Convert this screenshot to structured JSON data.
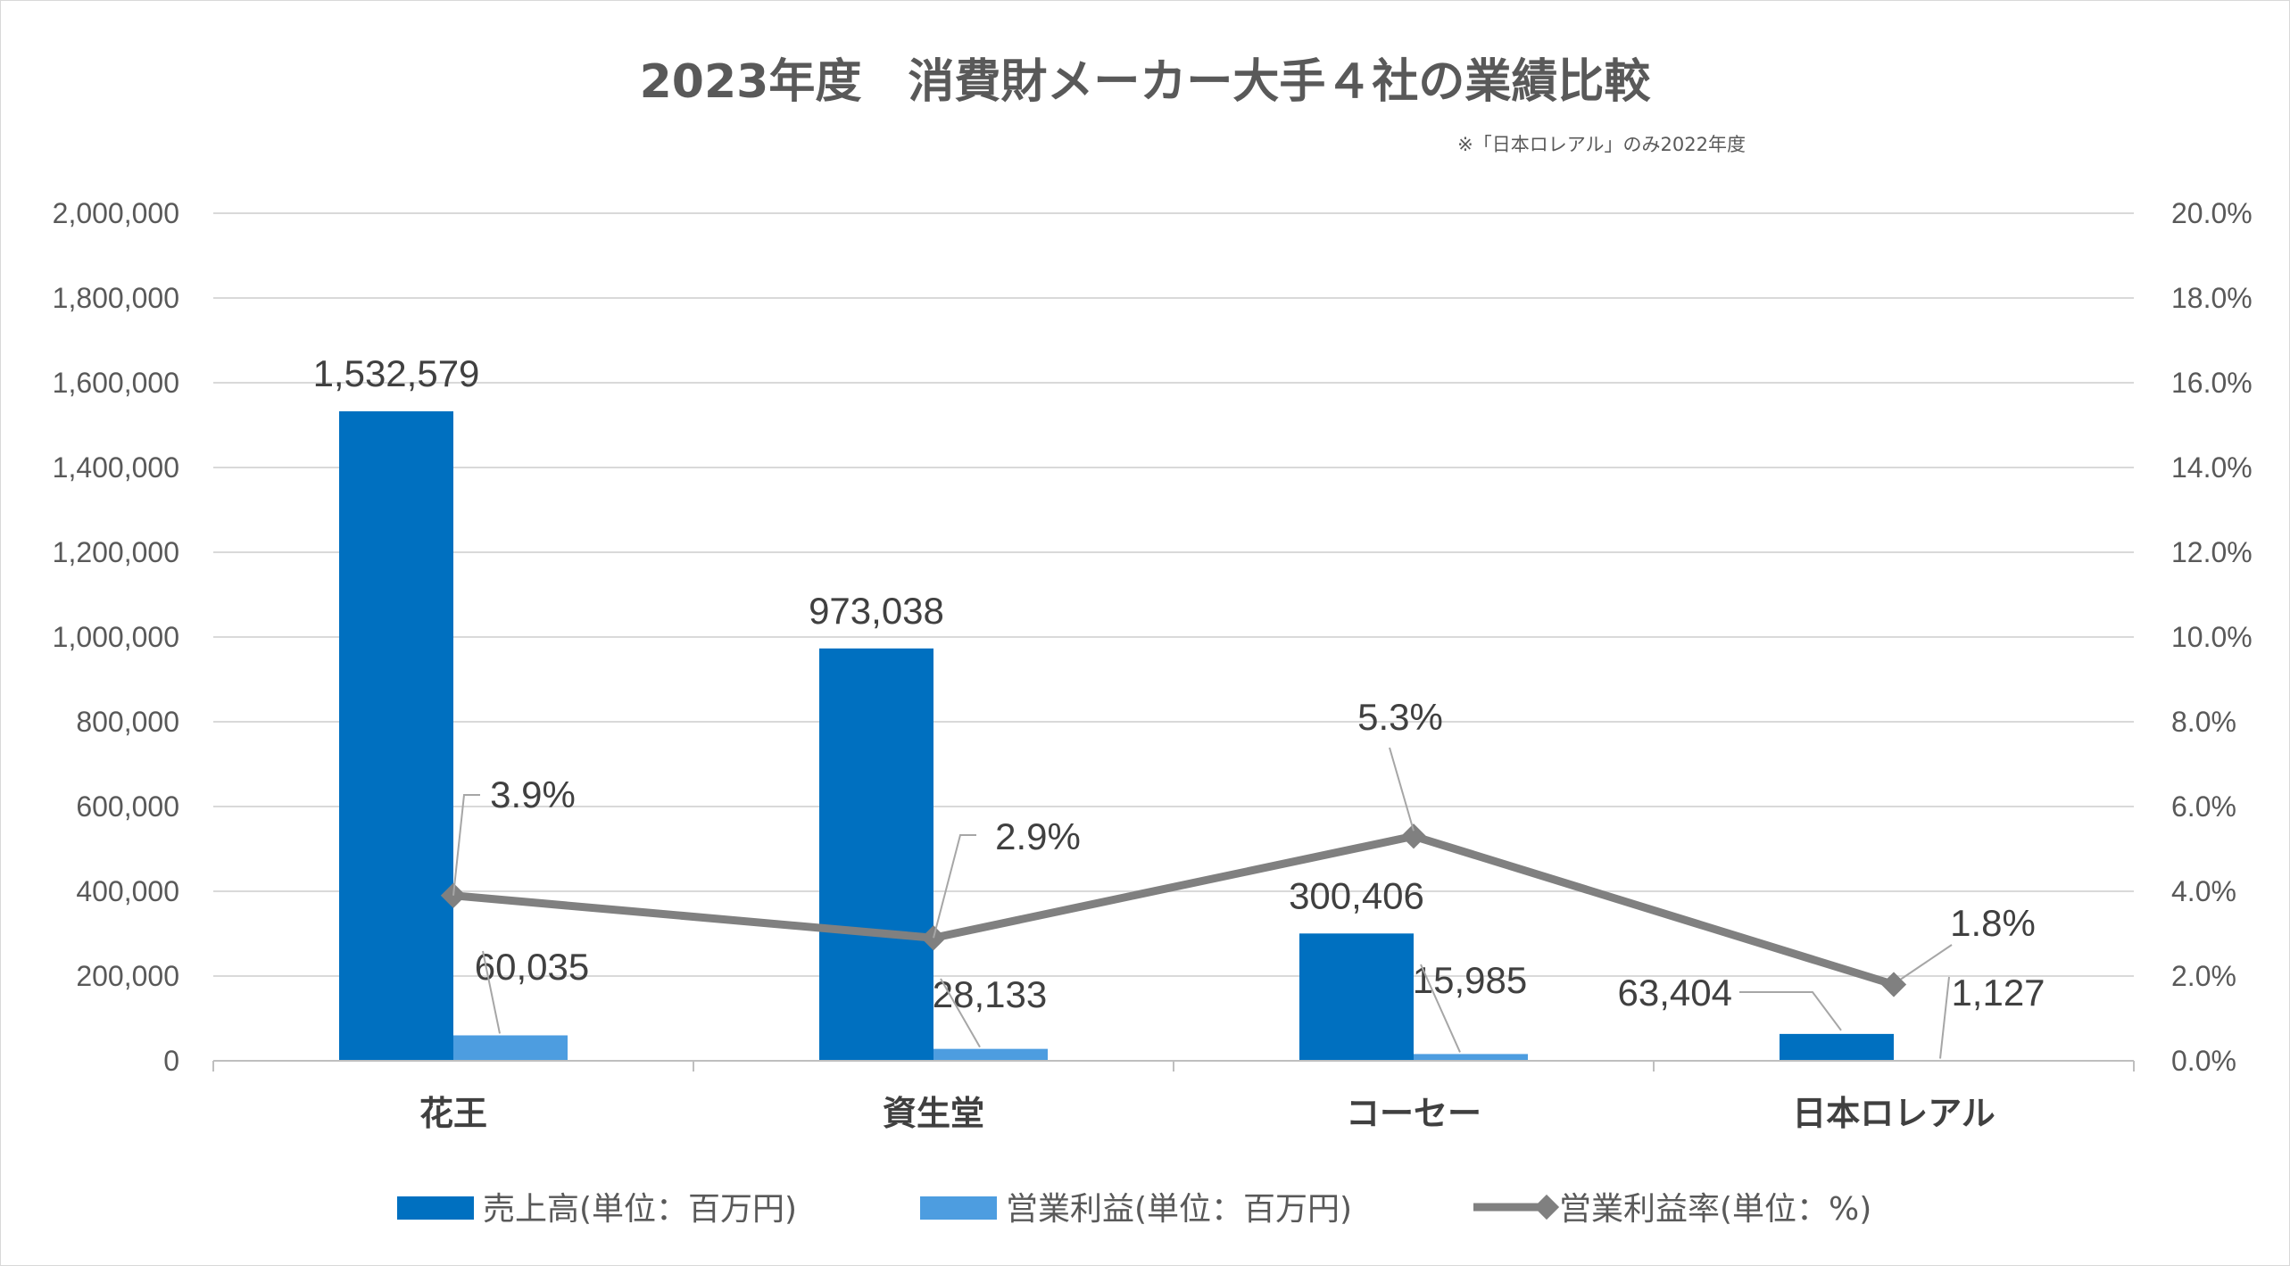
{
  "chart_data": {
    "type": "bar",
    "title": "2023年度　消費財メーカー大手４社の業績比較",
    "subtitle": "※「日本ロレアル」のみ2022年度",
    "categories": [
      "花王",
      "資生堂",
      "コーセー",
      "日本ロレアル"
    ],
    "series": [
      {
        "name": "売上高(単位：百万円)",
        "type": "bar",
        "axis": "left",
        "color": "#0070c0",
        "values": [
          1532579,
          973038,
          300406,
          63404
        ],
        "labels": [
          "1,532,579",
          "973,038",
          "300,406",
          "63,404"
        ]
      },
      {
        "name": "営業利益(単位：百万円)",
        "type": "bar",
        "axis": "left",
        "color": "#4d9de0",
        "values": [
          60035,
          28133,
          15985,
          1127
        ],
        "labels": [
          "60,035",
          "28,133",
          "15,985",
          "1,127"
        ]
      },
      {
        "name": "営業利益率(単位：%)",
        "type": "line",
        "axis": "right",
        "color": "#808080",
        "values": [
          3.9,
          2.9,
          5.3,
          1.8
        ],
        "labels": [
          "3.9%",
          "2.9%",
          "5.3%",
          "1.8%"
        ]
      }
    ],
    "y_left": {
      "range": [
        0,
        2000000
      ],
      "ticks": [
        0,
        200000,
        400000,
        600000,
        800000,
        1000000,
        1200000,
        1400000,
        1600000,
        1800000,
        2000000
      ],
      "tick_labels": [
        "0",
        "200,000",
        "400,000",
        "600,000",
        "800,000",
        "1,000,000",
        "1,200,000",
        "1,400,000",
        "1,600,000",
        "1,800,000",
        "2,000,000"
      ]
    },
    "y_right": {
      "range": [
        0,
        20
      ],
      "ticks": [
        0,
        2,
        4,
        6,
        8,
        10,
        12,
        14,
        16,
        18,
        20
      ],
      "tick_labels": [
        "0.0%",
        "2.0%",
        "4.0%",
        "6.0%",
        "8.0%",
        "10.0%",
        "12.0%",
        "14.0%",
        "16.0%",
        "18.0%",
        "20.0%"
      ]
    },
    "grid": true,
    "legend": "bottom"
  }
}
